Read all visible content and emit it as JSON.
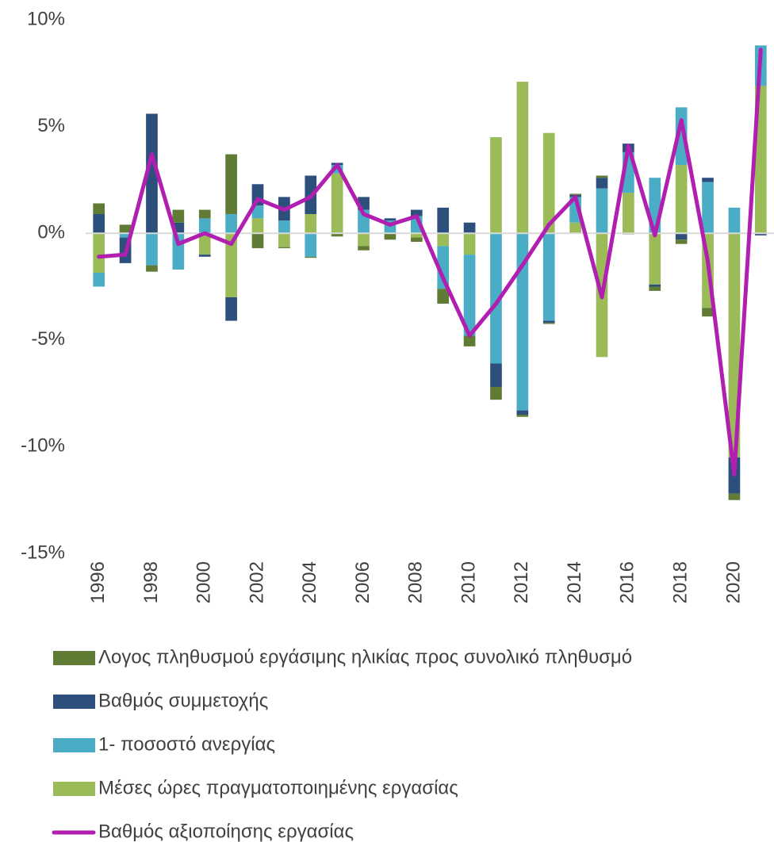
{
  "chart_data": {
    "type": "bar",
    "stacked": true,
    "categories": [
      "1996",
      null,
      "1998",
      null,
      "2000",
      null,
      "2002",
      null,
      "2004",
      null,
      "2006",
      null,
      "2008",
      null,
      "2010",
      null,
      "2012",
      null,
      "2014",
      null,
      "2016",
      null,
      "2018",
      null,
      "2020",
      null
    ],
    "series": [
      {
        "name": "Λογος πληθυσμού εργάσιμης ηλικίας προς συνολικό πληθυσμό",
        "color": "#5f7b34",
        "type": "bar",
        "values": [
          0.5,
          0.4,
          -0.3,
          0.6,
          0.4,
          2.8,
          -0.7,
          -0.05,
          -0.05,
          -0.15,
          -0.2,
          -0.3,
          -0.2,
          -0.7,
          -0.5,
          -0.6,
          -0.1,
          -0.05,
          0.05,
          0.1,
          -0.05,
          -0.2,
          -0.2,
          -0.4,
          -0.3,
          0
        ]
      },
      {
        "name": "Βαθμός συμμετοχής",
        "color": "#2c4f7c",
        "type": "bar",
        "values": [
          0.9,
          -1.2,
          5.6,
          0.5,
          -0.1,
          -1.1,
          1.0,
          1.1,
          1.8,
          0.1,
          0.6,
          0.1,
          0.3,
          1.2,
          0.5,
          -1.1,
          -0.2,
          -0.1,
          0.1,
          0.5,
          0.4,
          -0.1,
          -0.3,
          0.2,
          -1.7,
          -0.1
        ]
      },
      {
        "name": "1- ποσοστό ανεργίας",
        "color": "#4bacc6",
        "type": "bar",
        "values": [
          -0.65,
          -0.2,
          -1.5,
          -1.7,
          0.7,
          0.9,
          0.6,
          0.6,
          -1.1,
          0.4,
          1.1,
          0.6,
          0.8,
          -2.0,
          -3.8,
          -6.1,
          -8.3,
          -4.1,
          1.2,
          2.1,
          1.9,
          2.6,
          2.7,
          2.4,
          1.2,
          1.9
        ]
      },
      {
        "name": "Μέσες ώρες πραγματοποιημένης εργασίας",
        "color": "#9bbb59",
        "type": "bar",
        "values": [
          -1.85,
          0,
          0,
          0,
          -1.0,
          -3.0,
          0.7,
          -0.65,
          0.9,
          2.8,
          -0.6,
          0,
          -0.2,
          -0.6,
          -1.0,
          4.5,
          7.1,
          4.7,
          0.5,
          -5.8,
          1.9,
          -2.4,
          3.2,
          -3.5,
          -10.5,
          6.9
        ]
      },
      {
        "name": "Βαθμός αξιοποίησης εργασίας",
        "color": "#b01fb0",
        "type": "line",
        "values": [
          -1.1,
          -1.0,
          3.7,
          -0.5,
          0.0,
          -0.5,
          1.6,
          1.1,
          1.7,
          3.2,
          0.9,
          0.4,
          0.8,
          -2.1,
          -4.8,
          -3.3,
          -1.5,
          0.4,
          1.7,
          -3.0,
          4.1,
          -0.1,
          5.3,
          -1.3,
          -11.3,
          8.6
        ]
      }
    ],
    "ylim": [
      -15,
      10
    ],
    "yticks": [
      {
        "value": -15,
        "label": "-15%"
      },
      {
        "value": -10,
        "label": "-10%"
      },
      {
        "value": -5,
        "label": "-5%"
      },
      {
        "value": 0,
        "label": "0%"
      },
      {
        "value": 5,
        "label": "5%"
      },
      {
        "value": 10,
        "label": "10%"
      }
    ],
    "grid": false,
    "legend": "bottom"
  }
}
